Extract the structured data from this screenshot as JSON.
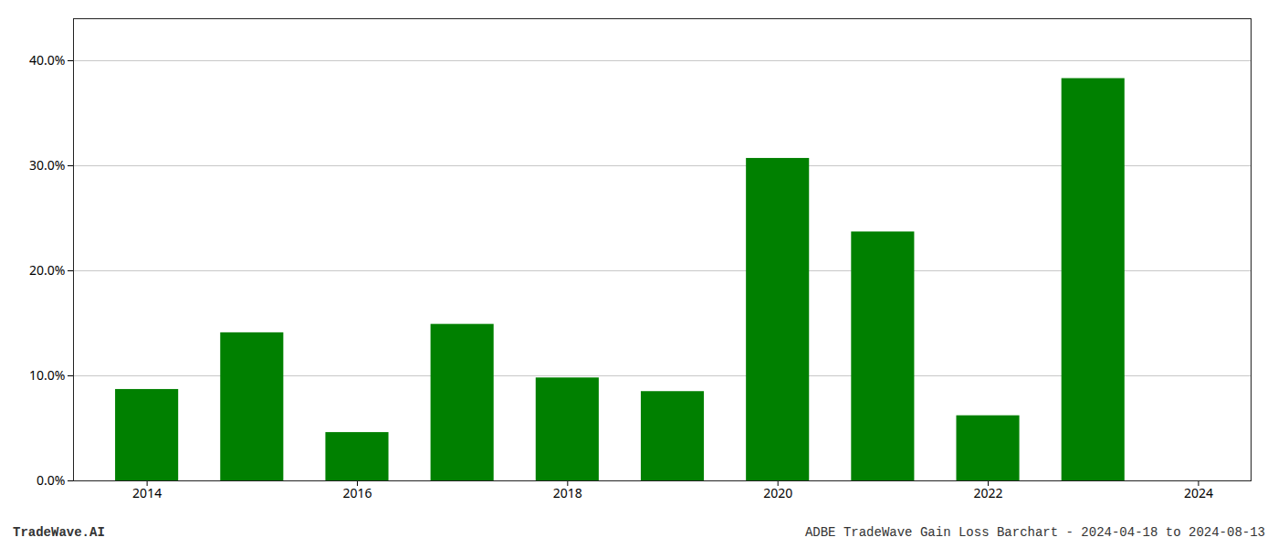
{
  "chart_data": {
    "type": "bar",
    "x": [
      2014,
      2015,
      2016,
      2017,
      2018,
      2019,
      2020,
      2021,
      2022,
      2023
    ],
    "values": [
      0.087,
      0.141,
      0.046,
      0.149,
      0.098,
      0.085,
      0.307,
      0.237,
      0.062,
      0.383
    ],
    "color": "#008000",
    "xlim": [
      2013.3,
      2024.5
    ],
    "xticks": [
      2014,
      2016,
      2018,
      2020,
      2022,
      2024
    ],
    "ylim": [
      0,
      0.44
    ],
    "yticks": [
      {
        "value": 0.0,
        "label": "0.0%"
      },
      {
        "value": 0.1,
        "label": "10.0%"
      },
      {
        "value": 0.2,
        "label": "20.0%"
      },
      {
        "value": 0.3,
        "label": "30.0%"
      },
      {
        "value": 0.4,
        "label": "40.0%"
      }
    ],
    "grid": "y",
    "annotations": [
      "TradeWave.AI",
      "ADBE TradeWave Gain Loss Barchart - 2024-04-18 to 2024-08-13"
    ]
  }
}
